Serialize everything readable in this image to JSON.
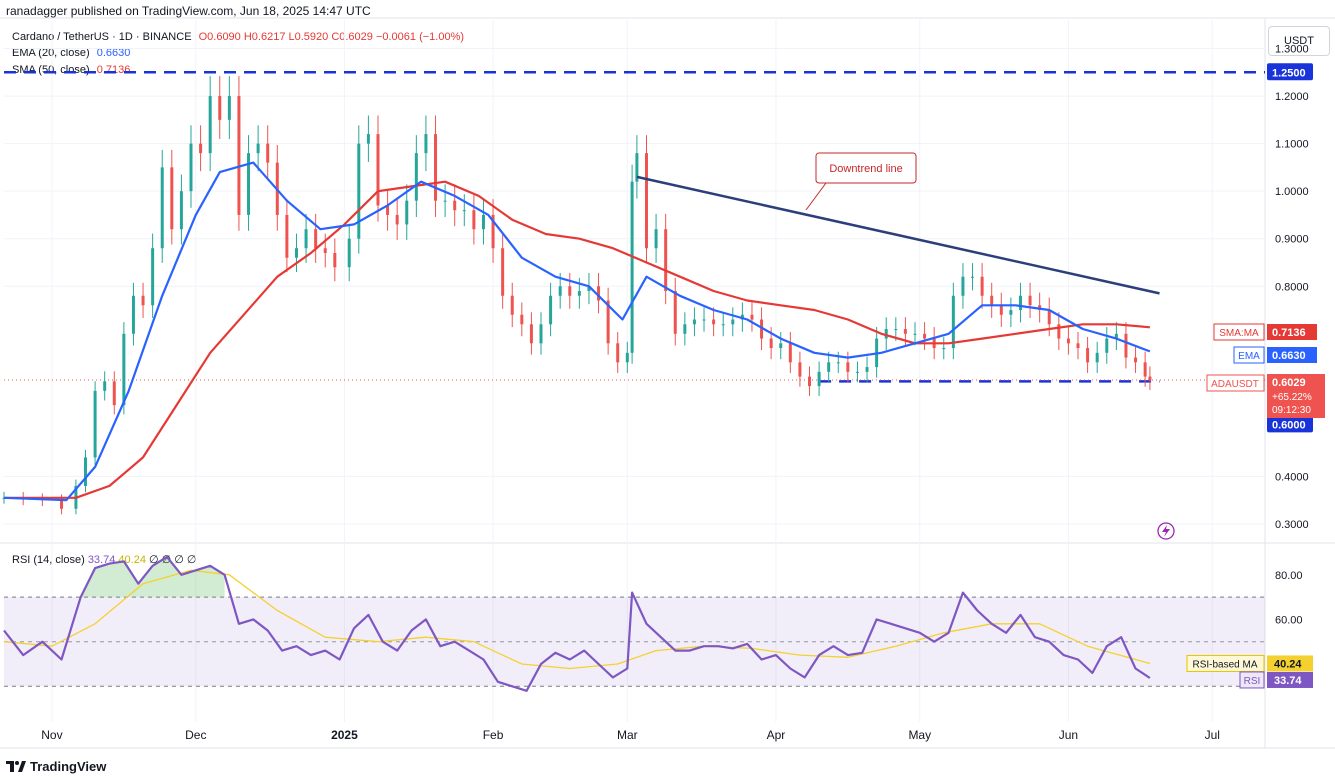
{
  "header": {
    "published": "ranadagger published on TradingView.com, Jun 18, 2025 14:47 UTC",
    "symbol": "Cardano / TetherUS · 1D · BINANCE",
    "ohlc": "O0.6090 H0.6217 L0.5920 C0.6029 −0.0061 (−1.00%)",
    "ema_label": "EMA (20, close)",
    "ema_value": "0.6630",
    "sma_label": "SMA (50, close)",
    "sma_value": "0.7136",
    "currency": "USDT"
  },
  "rsi_legend": {
    "label": "RSI (14, close)",
    "rsi_value": "33.74",
    "ma_value": "40.24",
    "extras": "∅ ∅ ∅ ∅"
  },
  "footer": {
    "brand": "TradingView"
  },
  "colors": {
    "up": "#26a69a",
    "down": "#ef5350",
    "ema": "#2962ff",
    "sma": "#e53935",
    "trend": "#2b3f7a",
    "level": "#1733d9",
    "rsi": "#7e57c2",
    "rsi_ma": "#f5d130"
  },
  "chart_data": [
    {
      "type": "candlestick",
      "title": "Cardano / TetherUS · 1D · BINANCE",
      "y_ticks": [
        "1.3000",
        "1.2000",
        "1.1000",
        "1.0000",
        "0.9000",
        "0.8000",
        "0.4000",
        "0.3000"
      ],
      "x_ticks": [
        "Nov",
        "Dec",
        "2025",
        "Feb",
        "Mar",
        "Apr",
        "May",
        "Jun",
        "Jul"
      ],
      "ylim": [
        0.26,
        1.36
      ],
      "levels": [
        {
          "value": 1.25,
          "label": "1.2500"
        },
        {
          "value": 0.6,
          "label": "0.6000"
        }
      ],
      "annotation": {
        "text": "Downtrend line",
        "from": [
          "2025-03-03",
          1.03
        ],
        "to": [
          "2025-06-20",
          0.785
        ]
      },
      "badges": [
        {
          "label": "SMA:MA",
          "value": "0.7136"
        },
        {
          "label": "EMA",
          "value": "0.6630"
        },
        {
          "label": "ADAUSDT",
          "value": "0.6029",
          "change": "+65.22%",
          "countdown": "09:12:30"
        }
      ],
      "close": [
        [
          "2024-10-22",
          0.355
        ],
        [
          "2024-10-26",
          0.352
        ],
        [
          "2024-10-30",
          0.35
        ],
        [
          "2024-11-03",
          0.332
        ],
        [
          "2024-11-06",
          0.38
        ],
        [
          "2024-11-08",
          0.44
        ],
        [
          "2024-11-10",
          0.58
        ],
        [
          "2024-11-12",
          0.6
        ],
        [
          "2024-11-14",
          0.55
        ],
        [
          "2024-11-16",
          0.7
        ],
        [
          "2024-11-18",
          0.78
        ],
        [
          "2024-11-20",
          0.76
        ],
        [
          "2024-11-22",
          0.88
        ],
        [
          "2024-11-24",
          1.05
        ],
        [
          "2024-11-26",
          0.92
        ],
        [
          "2024-11-28",
          1.0
        ],
        [
          "2024-11-30",
          1.1
        ],
        [
          "2024-12-02",
          1.08
        ],
        [
          "2024-12-04",
          1.2
        ],
        [
          "2024-12-06",
          1.15
        ],
        [
          "2024-12-08",
          1.2
        ],
        [
          "2024-12-10",
          0.95
        ],
        [
          "2024-12-12",
          1.08
        ],
        [
          "2024-12-14",
          1.1
        ],
        [
          "2024-12-16",
          1.06
        ],
        [
          "2024-12-18",
          0.95
        ],
        [
          "2024-12-20",
          0.86
        ],
        [
          "2024-12-22",
          0.88
        ],
        [
          "2024-12-24",
          0.92
        ],
        [
          "2024-12-26",
          0.88
        ],
        [
          "2024-12-28",
          0.87
        ],
        [
          "2024-12-30",
          0.84
        ],
        [
          "2025-01-02",
          0.9
        ],
        [
          "2025-01-04",
          1.1
        ],
        [
          "2025-01-06",
          1.12
        ],
        [
          "2025-01-08",
          0.97
        ],
        [
          "2025-01-10",
          0.95
        ],
        [
          "2025-01-12",
          0.93
        ],
        [
          "2025-01-14",
          0.98
        ],
        [
          "2025-01-16",
          1.08
        ],
        [
          "2025-01-18",
          1.12
        ],
        [
          "2025-01-20",
          0.98
        ],
        [
          "2025-01-22",
          0.98
        ],
        [
          "2025-01-24",
          0.96
        ],
        [
          "2025-01-26",
          0.96
        ],
        [
          "2025-01-28",
          0.92
        ],
        [
          "2025-01-30",
          0.95
        ],
        [
          "2025-02-01",
          0.88
        ],
        [
          "2025-02-03",
          0.78
        ],
        [
          "2025-02-05",
          0.74
        ],
        [
          "2025-02-07",
          0.72
        ],
        [
          "2025-02-09",
          0.68
        ],
        [
          "2025-02-11",
          0.72
        ],
        [
          "2025-02-13",
          0.78
        ],
        [
          "2025-02-15",
          0.8
        ],
        [
          "2025-02-17",
          0.78
        ],
        [
          "2025-02-19",
          0.79
        ],
        [
          "2025-02-21",
          0.8
        ],
        [
          "2025-02-23",
          0.77
        ],
        [
          "2025-02-25",
          0.68
        ],
        [
          "2025-02-27",
          0.64
        ],
        [
          "2025-03-01",
          0.66
        ],
        [
          "2025-03-02",
          1.02
        ],
        [
          "2025-03-03",
          1.08
        ],
        [
          "2025-03-05",
          0.88
        ],
        [
          "2025-03-07",
          0.92
        ],
        [
          "2025-03-09",
          0.79
        ],
        [
          "2025-03-11",
          0.7
        ],
        [
          "2025-03-13",
          0.72
        ],
        [
          "2025-03-15",
          0.73
        ],
        [
          "2025-03-17",
          0.73
        ],
        [
          "2025-03-19",
          0.72
        ],
        [
          "2025-03-21",
          0.72
        ],
        [
          "2025-03-23",
          0.73
        ],
        [
          "2025-03-25",
          0.74
        ],
        [
          "2025-03-27",
          0.73
        ],
        [
          "2025-03-29",
          0.69
        ],
        [
          "2025-03-31",
          0.67
        ],
        [
          "2025-04-02",
          0.68
        ],
        [
          "2025-04-04",
          0.64
        ],
        [
          "2025-04-06",
          0.61
        ],
        [
          "2025-04-08",
          0.59
        ],
        [
          "2025-04-10",
          0.62
        ],
        [
          "2025-04-12",
          0.64
        ],
        [
          "2025-04-14",
          0.64
        ],
        [
          "2025-04-16",
          0.62
        ],
        [
          "2025-04-18",
          0.62
        ],
        [
          "2025-04-20",
          0.63
        ],
        [
          "2025-04-22",
          0.69
        ],
        [
          "2025-04-24",
          0.71
        ],
        [
          "2025-04-26",
          0.71
        ],
        [
          "2025-04-28",
          0.7
        ],
        [
          "2025-04-30",
          0.7
        ],
        [
          "2025-05-02",
          0.69
        ],
        [
          "2025-05-04",
          0.67
        ],
        [
          "2025-05-06",
          0.67
        ],
        [
          "2025-05-08",
          0.78
        ],
        [
          "2025-05-10",
          0.82
        ],
        [
          "2025-05-12",
          0.82
        ],
        [
          "2025-05-14",
          0.78
        ],
        [
          "2025-05-16",
          0.76
        ],
        [
          "2025-05-18",
          0.74
        ],
        [
          "2025-05-20",
          0.75
        ],
        [
          "2025-05-22",
          0.78
        ],
        [
          "2025-05-24",
          0.76
        ],
        [
          "2025-05-26",
          0.75
        ],
        [
          "2025-05-28",
          0.72
        ],
        [
          "2025-05-30",
          0.69
        ],
        [
          "2025-06-01",
          0.68
        ],
        [
          "2025-06-03",
          0.67
        ],
        [
          "2025-06-05",
          0.64
        ],
        [
          "2025-06-07",
          0.66
        ],
        [
          "2025-06-09",
          0.69
        ],
        [
          "2025-06-11",
          0.7
        ],
        [
          "2025-06-13",
          0.65
        ],
        [
          "2025-06-15",
          0.64
        ],
        [
          "2025-06-17",
          0.61
        ],
        [
          "2025-06-18",
          0.6029
        ]
      ],
      "ema20": [
        [
          "2024-10-22",
          0.355
        ],
        [
          "2024-11-04",
          0.35
        ],
        [
          "2024-11-10",
          0.42
        ],
        [
          "2024-11-17",
          0.58
        ],
        [
          "2024-11-24",
          0.78
        ],
        [
          "2024-12-01",
          0.95
        ],
        [
          "2024-12-06",
          1.04
        ],
        [
          "2024-12-13",
          1.06
        ],
        [
          "2024-12-20",
          0.98
        ],
        [
          "2024-12-27",
          0.92
        ],
        [
          "2025-01-03",
          0.93
        ],
        [
          "2025-01-10",
          0.97
        ],
        [
          "2025-01-17",
          1.02
        ],
        [
          "2025-01-24",
          0.99
        ],
        [
          "2025-01-31",
          0.95
        ],
        [
          "2025-02-07",
          0.86
        ],
        [
          "2025-02-14",
          0.82
        ],
        [
          "2025-02-21",
          0.8
        ],
        [
          "2025-02-28",
          0.73
        ],
        [
          "2025-03-05",
          0.82
        ],
        [
          "2025-03-12",
          0.78
        ],
        [
          "2025-03-19",
          0.75
        ],
        [
          "2025-03-26",
          0.73
        ],
        [
          "2025-04-02",
          0.69
        ],
        [
          "2025-04-09",
          0.66
        ],
        [
          "2025-04-16",
          0.65
        ],
        [
          "2025-04-23",
          0.66
        ],
        [
          "2025-04-30",
          0.68
        ],
        [
          "2025-05-07",
          0.7
        ],
        [
          "2025-05-14",
          0.76
        ],
        [
          "2025-05-21",
          0.76
        ],
        [
          "2025-05-28",
          0.75
        ],
        [
          "2025-06-04",
          0.71
        ],
        [
          "2025-06-11",
          0.69
        ],
        [
          "2025-06-18",
          0.663
        ]
      ],
      "sma50": [
        [
          "2024-10-22",
          0.355
        ],
        [
          "2024-11-06",
          0.355
        ],
        [
          "2024-11-13",
          0.38
        ],
        [
          "2024-11-20",
          0.44
        ],
        [
          "2024-11-27",
          0.55
        ],
        [
          "2024-12-04",
          0.66
        ],
        [
          "2024-12-11",
          0.74
        ],
        [
          "2024-12-18",
          0.82
        ],
        [
          "2024-12-25",
          0.87
        ],
        [
          "2025-01-01",
          0.93
        ],
        [
          "2025-01-08",
          1.0
        ],
        [
          "2025-01-15",
          1.01
        ],
        [
          "2025-01-22",
          1.02
        ],
        [
          "2025-01-29",
          0.99
        ],
        [
          "2025-02-05",
          0.94
        ],
        [
          "2025-02-12",
          0.91
        ],
        [
          "2025-02-19",
          0.9
        ],
        [
          "2025-02-26",
          0.88
        ],
        [
          "2025-03-05",
          0.85
        ],
        [
          "2025-03-12",
          0.82
        ],
        [
          "2025-03-19",
          0.79
        ],
        [
          "2025-03-26",
          0.77
        ],
        [
          "2025-04-02",
          0.76
        ],
        [
          "2025-04-09",
          0.75
        ],
        [
          "2025-04-16",
          0.73
        ],
        [
          "2025-04-23",
          0.7
        ],
        [
          "2025-04-30",
          0.68
        ],
        [
          "2025-05-07",
          0.68
        ],
        [
          "2025-05-14",
          0.69
        ],
        [
          "2025-05-21",
          0.7
        ],
        [
          "2025-05-28",
          0.71
        ],
        [
          "2025-06-04",
          0.72
        ],
        [
          "2025-06-11",
          0.72
        ],
        [
          "2025-06-18",
          0.7136
        ]
      ]
    },
    {
      "type": "line",
      "title": "RSI (14, close)",
      "y_ticks": [
        "80.00",
        "60.00"
      ],
      "ylim": [
        14,
        92
      ],
      "bands": {
        "upper": 70,
        "middle": 50,
        "lower": 30
      },
      "badges": [
        {
          "label": "RSI-based MA",
          "value": "40.24"
        },
        {
          "label": "RSI",
          "value": "33.74"
        }
      ],
      "rsi": [
        [
          "2024-10-22",
          55
        ],
        [
          "2024-10-26",
          44
        ],
        [
          "2024-10-30",
          50
        ],
        [
          "2024-11-03",
          42
        ],
        [
          "2024-11-07",
          70
        ],
        [
          "2024-11-10",
          83
        ],
        [
          "2024-11-13",
          85
        ],
        [
          "2024-11-16",
          86
        ],
        [
          "2024-11-19",
          76
        ],
        [
          "2024-11-22",
          84
        ],
        [
          "2024-11-25",
          88
        ],
        [
          "2024-11-28",
          80
        ],
        [
          "2024-12-01",
          82
        ],
        [
          "2024-12-04",
          84
        ],
        [
          "2024-12-07",
          80
        ],
        [
          "2024-12-10",
          58
        ],
        [
          "2024-12-13",
          60
        ],
        [
          "2024-12-16",
          55
        ],
        [
          "2024-12-19",
          46
        ],
        [
          "2024-12-22",
          48
        ],
        [
          "2024-12-25",
          44
        ],
        [
          "2024-12-28",
          46
        ],
        [
          "2024-12-31",
          42
        ],
        [
          "2025-01-03",
          56
        ],
        [
          "2025-01-06",
          62
        ],
        [
          "2025-01-09",
          50
        ],
        [
          "2025-01-12",
          46
        ],
        [
          "2025-01-15",
          55
        ],
        [
          "2025-01-18",
          60
        ],
        [
          "2025-01-21",
          48
        ],
        [
          "2025-01-24",
          50
        ],
        [
          "2025-01-27",
          46
        ],
        [
          "2025-01-30",
          42
        ],
        [
          "2025-02-02",
          32
        ],
        [
          "2025-02-05",
          30
        ],
        [
          "2025-02-08",
          28
        ],
        [
          "2025-02-11",
          40
        ],
        [
          "2025-02-14",
          45
        ],
        [
          "2025-02-17",
          42
        ],
        [
          "2025-02-20",
          46
        ],
        [
          "2025-02-23",
          40
        ],
        [
          "2025-02-26",
          34
        ],
        [
          "2025-03-01",
          38
        ],
        [
          "2025-03-02",
          72
        ],
        [
          "2025-03-05",
          58
        ],
        [
          "2025-03-08",
          52
        ],
        [
          "2025-03-11",
          46
        ],
        [
          "2025-03-14",
          46
        ],
        [
          "2025-03-17",
          48
        ],
        [
          "2025-03-20",
          48
        ],
        [
          "2025-03-23",
          47
        ],
        [
          "2025-03-26",
          49
        ],
        [
          "2025-03-29",
          42
        ],
        [
          "2025-04-01",
          44
        ],
        [
          "2025-04-04",
          38
        ],
        [
          "2025-04-07",
          34
        ],
        [
          "2025-04-10",
          44
        ],
        [
          "2025-04-13",
          48
        ],
        [
          "2025-04-16",
          44
        ],
        [
          "2025-04-19",
          45
        ],
        [
          "2025-04-22",
          60
        ],
        [
          "2025-04-25",
          58
        ],
        [
          "2025-04-28",
          56
        ],
        [
          "2025-05-01",
          54
        ],
        [
          "2025-05-04",
          50
        ],
        [
          "2025-05-07",
          54
        ],
        [
          "2025-05-10",
          72
        ],
        [
          "2025-05-13",
          64
        ],
        [
          "2025-05-16",
          58
        ],
        [
          "2025-05-19",
          54
        ],
        [
          "2025-05-22",
          62
        ],
        [
          "2025-05-25",
          52
        ],
        [
          "2025-05-28",
          50
        ],
        [
          "2025-05-31",
          44
        ],
        [
          "2025-06-03",
          42
        ],
        [
          "2025-06-06",
          36
        ],
        [
          "2025-06-09",
          48
        ],
        [
          "2025-06-12",
          52
        ],
        [
          "2025-06-15",
          38
        ],
        [
          "2025-06-18",
          33.74
        ]
      ],
      "rsi_ma": [
        [
          "2024-10-22",
          50
        ],
        [
          "2024-11-01",
          48
        ],
        [
          "2024-11-10",
          58
        ],
        [
          "2024-11-20",
          76
        ],
        [
          "2024-11-30",
          82
        ],
        [
          "2024-12-08",
          80
        ],
        [
          "2024-12-18",
          64
        ],
        [
          "2024-12-28",
          52
        ],
        [
          "2025-01-08",
          50
        ],
        [
          "2025-01-18",
          52
        ],
        [
          "2025-01-28",
          50
        ],
        [
          "2025-02-07",
          40
        ],
        [
          "2025-02-17",
          38
        ],
        [
          "2025-02-27",
          40
        ],
        [
          "2025-03-07",
          46
        ],
        [
          "2025-03-17",
          48
        ],
        [
          "2025-03-27",
          47
        ],
        [
          "2025-04-06",
          44
        ],
        [
          "2025-04-16",
          43
        ],
        [
          "2025-04-26",
          48
        ],
        [
          "2025-05-06",
          54
        ],
        [
          "2025-05-16",
          58
        ],
        [
          "2025-05-26",
          58
        ],
        [
          "2025-06-05",
          48
        ],
        [
          "2025-06-18",
          40.24
        ]
      ]
    }
  ]
}
